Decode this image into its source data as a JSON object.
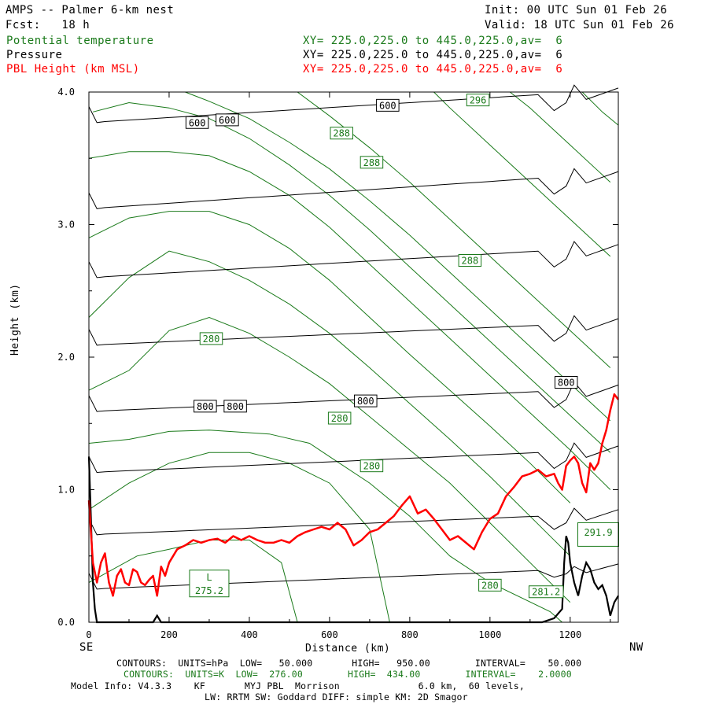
{
  "header": {
    "title": "AMPS -- Palmer 6-km nest",
    "fcst": "Fcst:   18 h",
    "init": "Init: 00 UTC Sun 01 Feb 26",
    "valid": "Valid: 18 UTC Sun 01 Feb 26",
    "fields": [
      {
        "name": "Potential temperature",
        "xy": "XY= 225.0,225.0 to 445.0,225.0,av=  6",
        "color": "#1a7a1a"
      },
      {
        "name": "Pressure",
        "xy": "XY= 225.0,225.0 to 445.0,225.0,av=  6",
        "color": "#000000"
      },
      {
        "name": "PBL Height (km MSL)",
        "xy": "XY= 225.0,225.0 to 445.0,225.0,av=  6",
        "color": "#ff0000"
      }
    ]
  },
  "footer": {
    "line1": "CONTOURS:  UNITS=hPa  LOW=   50.000       HIGH=   950.00        INTERVAL=    50.000",
    "line2": "CONTOURS:  UNITS=K  LOW=  276.00        HIGH=  434.00        INTERVAL=    2.0000",
    "line3": "Model Info: V4.3.3    KF       MYJ PBL  Morrison              6.0 km,  60 levels,",
    "line4": "LW: RRTM SW: Goddard DIFF: simple KM: 2D Smagor"
  },
  "chart_data": {
    "type": "line",
    "xlabel": "Distance (km)",
    "ylabel": "Height (km)",
    "xlim": [
      0,
      1320
    ],
    "ylim": [
      0,
      4.0
    ],
    "x_ticks": [
      0,
      200,
      400,
      600,
      800,
      1000,
      1200
    ],
    "y_ticks": [
      "0.0",
      "1.0",
      "2.0",
      "3.0",
      "4.0"
    ],
    "x_end_labels": {
      "left": "SE",
      "right": "NW"
    },
    "colors": {
      "pressure": "#000000",
      "theta": "#1a7a1a",
      "pbl": "#ff0000"
    },
    "pressure_contours": [
      {
        "p0": 0.25,
        "p1": 0.39,
        "tail_drop": 0.05
      },
      {
        "p0": 0.66,
        "p1": 0.8,
        "tail_drop": 0.1
      },
      {
        "p0": 1.13,
        "p1": 1.28,
        "tail_drop": 0.12
      },
      {
        "p0": 1.59,
        "p1": 1.74,
        "tail_drop": 0.12
      },
      {
        "p0": 2.09,
        "p1": 2.24,
        "tail_drop": 0.12
      },
      {
        "p0": 2.6,
        "p1": 2.8,
        "tail_drop": 0.12
      },
      {
        "p0": 3.12,
        "p1": 3.35,
        "tail_drop": 0.12
      },
      {
        "p0": 3.77,
        "p1": 3.98,
        "tail_drop": 0.12
      }
    ],
    "pressure_labels": [
      {
        "text": "800",
        "x": 290,
        "y": 1.63
      },
      {
        "text": "800",
        "x": 365,
        "y": 1.63
      },
      {
        "text": "800",
        "x": 690,
        "y": 1.67
      },
      {
        "text": "800",
        "x": 1190,
        "y": 1.81
      },
      {
        "text": "600",
        "x": 270,
        "y": 3.77
      },
      {
        "text": "600",
        "x": 345,
        "y": 3.79
      },
      {
        "text": "600",
        "x": 745,
        "y": 3.9
      }
    ],
    "theta_contours": [
      {
        "x": [
          0,
          120,
          200,
          300,
          400,
          480,
          520
        ],
        "y": [
          0.3,
          0.5,
          0.55,
          0.62,
          0.62,
          0.45,
          0.0
        ]
      },
      {
        "x": [
          0,
          100,
          200,
          300,
          400,
          500,
          600,
          700,
          750
        ],
        "y": [
          0.85,
          1.05,
          1.2,
          1.28,
          1.28,
          1.2,
          1.05,
          0.7,
          0.0
        ]
      },
      {
        "x": [
          0,
          100,
          200,
          300,
          450,
          550,
          600,
          700,
          800,
          900,
          1000,
          1150,
          1180
        ],
        "y": [
          1.35,
          1.38,
          1.44,
          1.45,
          1.42,
          1.35,
          1.25,
          1.05,
          0.8,
          0.5,
          0.3,
          0.08,
          0.0
        ]
      },
      {
        "x": [
          0,
          100,
          200,
          300,
          400,
          500,
          600,
          700,
          800,
          900,
          1000,
          1100,
          1200
        ],
        "y": [
          1.75,
          1.9,
          2.2,
          2.3,
          2.18,
          2.0,
          1.8,
          1.55,
          1.3,
          1.05,
          0.75,
          0.45,
          0.15
        ]
      },
      {
        "x": [
          0,
          100,
          200,
          300,
          400,
          500,
          600,
          700,
          800,
          900,
          1000,
          1100,
          1200
        ],
        "y": [
          2.3,
          2.6,
          2.8,
          2.72,
          2.58,
          2.4,
          2.18,
          1.92,
          1.65,
          1.38,
          1.1,
          0.8,
          0.5
        ]
      },
      {
        "x": [
          0,
          100,
          200,
          300,
          400,
          500,
          600,
          700,
          800,
          900,
          1000,
          1100,
          1200
        ],
        "y": [
          2.9,
          3.05,
          3.1,
          3.1,
          3.0,
          2.82,
          2.58,
          2.3,
          2.02,
          1.75,
          1.48,
          1.2,
          0.9
        ]
      },
      {
        "x": [
          0,
          100,
          200,
          300,
          400,
          500,
          600,
          700,
          800,
          900,
          1000,
          1100,
          1200,
          1300
        ],
        "y": [
          3.5,
          3.55,
          3.55,
          3.52,
          3.4,
          3.22,
          2.98,
          2.7,
          2.42,
          2.14,
          1.86,
          1.58,
          1.3,
          1.0
        ]
      },
      {
        "x": [
          10,
          100,
          200,
          300,
          400,
          500,
          600,
          700,
          800,
          900,
          1000,
          1100,
          1200,
          1300
        ],
        "y": [
          3.85,
          3.92,
          3.88,
          3.8,
          3.65,
          3.45,
          3.22,
          2.96,
          2.68,
          2.4,
          2.12,
          1.84,
          1.56,
          1.28
        ]
      },
      {
        "x": [
          240,
          300,
          400,
          500,
          600,
          700,
          800,
          900,
          1000,
          1100,
          1200,
          1300
        ],
        "y": [
          4.0,
          3.93,
          3.8,
          3.62,
          3.42,
          3.18,
          2.92,
          2.64,
          2.36,
          2.08,
          1.8,
          1.52
        ]
      },
      {
        "x": [
          520,
          600,
          700,
          800,
          900,
          1000,
          1100,
          1200,
          1300
        ],
        "y": [
          4.0,
          3.82,
          3.58,
          3.32,
          3.04,
          2.76,
          2.48,
          2.2,
          1.92
        ]
      },
      {
        "x": [
          860,
          900,
          1000,
          1100,
          1200,
          1300
        ],
        "y": [
          4.0,
          3.88,
          3.6,
          3.32,
          3.04,
          2.76
        ]
      },
      {
        "x": [
          1050,
          1100,
          1200,
          1300
        ],
        "y": [
          4.0,
          3.88,
          3.6,
          3.32
        ]
      },
      {
        "x": [
          1230,
          1280,
          1320
        ],
        "y": [
          4.0,
          3.85,
          3.75
        ]
      }
    ],
    "theta_labels": [
      {
        "text": "L",
        "x": 300,
        "y": 0.34
      },
      {
        "text": "275.2",
        "x": 300,
        "y": 0.24
      },
      {
        "text": "280",
        "x": 305,
        "y": 2.14
      },
      {
        "text": "280",
        "x": 625,
        "y": 1.54
      },
      {
        "text": "280",
        "x": 705,
        "y": 1.18
      },
      {
        "text": "280",
        "x": 1000,
        "y": 0.28
      },
      {
        "text": "281.2",
        "x": 1140,
        "y": 0.23
      },
      {
        "text": "291.9",
        "x": 1270,
        "y": 0.68
      },
      {
        "text": "288",
        "x": 630,
        "y": 3.69
      },
      {
        "text": "288",
        "x": 705,
        "y": 3.47
      },
      {
        "text": "288",
        "x": 950,
        "y": 2.73
      },
      {
        "text": "296",
        "x": 970,
        "y": 3.94
      }
    ],
    "pbl": {
      "x": [
        0,
        10,
        20,
        30,
        40,
        50,
        60,
        70,
        80,
        90,
        100,
        110,
        120,
        130,
        140,
        150,
        160,
        170,
        180,
        190,
        200,
        220,
        240,
        260,
        280,
        300,
        320,
        340,
        360,
        380,
        400,
        420,
        440,
        460,
        480,
        500,
        520,
        540,
        560,
        580,
        600,
        620,
        640,
        660,
        680,
        700,
        720,
        740,
        760,
        780,
        800,
        820,
        840,
        860,
        880,
        900,
        920,
        940,
        960,
        980,
        1000,
        1020,
        1040,
        1060,
        1080,
        1100,
        1120,
        1140,
        1160,
        1170,
        1180,
        1190,
        1200,
        1210,
        1220,
        1230,
        1240,
        1250,
        1260,
        1270,
        1280,
        1290,
        1300,
        1310,
        1320
      ],
      "y": [
        0.92,
        0.45,
        0.3,
        0.45,
        0.52,
        0.3,
        0.2,
        0.35,
        0.4,
        0.3,
        0.28,
        0.4,
        0.38,
        0.3,
        0.28,
        0.32,
        0.35,
        0.2,
        0.42,
        0.35,
        0.45,
        0.55,
        0.58,
        0.62,
        0.6,
        0.62,
        0.63,
        0.6,
        0.65,
        0.62,
        0.65,
        0.62,
        0.6,
        0.6,
        0.62,
        0.6,
        0.65,
        0.68,
        0.7,
        0.72,
        0.7,
        0.75,
        0.7,
        0.58,
        0.62,
        0.68,
        0.7,
        0.75,
        0.8,
        0.88,
        0.95,
        0.82,
        0.85,
        0.78,
        0.7,
        0.62,
        0.65,
        0.6,
        0.55,
        0.68,
        0.78,
        0.82,
        0.95,
        1.02,
        1.1,
        1.12,
        1.15,
        1.1,
        1.12,
        1.05,
        1.0,
        1.18,
        1.22,
        1.25,
        1.2,
        1.05,
        0.98,
        1.2,
        1.15,
        1.2,
        1.35,
        1.45,
        1.6,
        1.72,
        1.68
      ]
    },
    "terrain": {
      "x": [
        0,
        5,
        10,
        15,
        20,
        25,
        30,
        160,
        170,
        180,
        1130,
        1160,
        1180,
        1185,
        1190,
        1195,
        1200,
        1210,
        1220,
        1230,
        1240,
        1250,
        1260,
        1270,
        1280,
        1290,
        1300,
        1310,
        1320
      ],
      "y": [
        1.25,
        0.8,
        0.3,
        0.1,
        0.0,
        0.0,
        0.0,
        0.0,
        0.05,
        0.0,
        0.0,
        0.03,
        0.1,
        0.45,
        0.65,
        0.6,
        0.45,
        0.3,
        0.2,
        0.35,
        0.45,
        0.4,
        0.3,
        0.25,
        0.28,
        0.2,
        0.05,
        0.15,
        0.2
      ]
    }
  }
}
